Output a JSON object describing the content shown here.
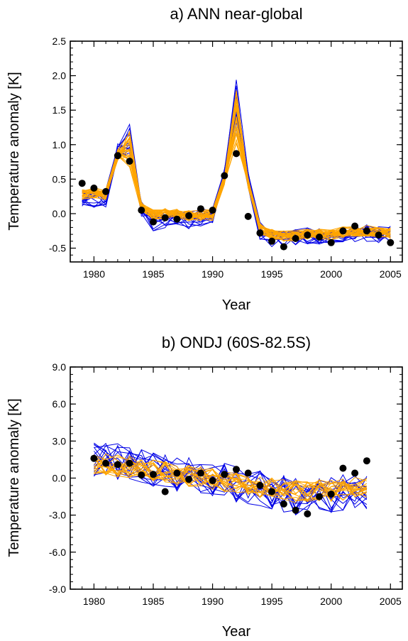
{
  "chart_data": [
    {
      "type": "line",
      "title": "a) ANN near-global",
      "xlabel": "Year",
      "ylabel": "Temperature anomaly [K]",
      "xlim": [
        1978,
        2006
      ],
      "ylim": [
        -0.7,
        2.5
      ],
      "xticks": [
        1980,
        1985,
        1990,
        1995,
        2000,
        2005
      ],
      "xtick_labels": [
        "1980",
        "1985",
        "1990",
        "1995",
        "2000",
        "2005"
      ],
      "yticks": [
        -0.5,
        0.0,
        0.5,
        1.0,
        1.5,
        2.0,
        2.5
      ],
      "ytick_labels": [
        "-0.5",
        "0.0",
        "0.5",
        "1.0",
        "1.5",
        "2.0",
        "2.5"
      ],
      "colors": {
        "ensemble_a": "#0000e6",
        "ensemble_b": "#ffa500",
        "observations": "#000000"
      },
      "ensembles": [
        {
          "color": "#0000e6",
          "count": 14,
          "amp": 0.13,
          "x": [
            1979,
            1980,
            1981,
            1982,
            1983,
            1984,
            1985,
            1986,
            1987,
            1988,
            1989,
            1990,
            1991,
            1992,
            1993,
            1994,
            1995,
            1996,
            1997,
            1998,
            1999,
            2000,
            2001,
            2002,
            2003,
            2004,
            2005
          ],
          "values": [
            0.2,
            0.22,
            0.22,
            0.92,
            1.0,
            0.05,
            -0.12,
            -0.1,
            -0.08,
            -0.1,
            -0.05,
            -0.05,
            0.55,
            1.5,
            0.5,
            -0.25,
            -0.35,
            -0.35,
            -0.35,
            -0.33,
            -0.32,
            -0.32,
            -0.3,
            -0.28,
            -0.28,
            -0.3,
            -0.3
          ]
        },
        {
          "color": "#ffa500",
          "count": 26,
          "amp": 0.08,
          "x": [
            1979,
            1980,
            1981,
            1982,
            1983,
            1984,
            1985,
            1986,
            1987,
            1988,
            1989,
            1990,
            1991,
            1992,
            1993,
            1994,
            1995,
            1996,
            1997,
            1998,
            1999,
            2000,
            2001,
            2002,
            2003,
            2004,
            2005
          ],
          "values": [
            0.28,
            0.3,
            0.28,
            0.85,
            0.9,
            0.1,
            -0.02,
            0.0,
            0.0,
            -0.03,
            -0.02,
            -0.02,
            0.5,
            1.35,
            0.45,
            -0.22,
            -0.3,
            -0.32,
            -0.32,
            -0.3,
            -0.3,
            -0.3,
            -0.27,
            -0.25,
            -0.25,
            -0.27,
            -0.28
          ]
        }
      ],
      "observations": {
        "x": [
          1979,
          1980,
          1981,
          1982,
          1983,
          1984,
          1985,
          1986,
          1987,
          1988,
          1989,
          1990,
          1991,
          1992,
          1993,
          1994,
          1995,
          1996,
          1997,
          1998,
          1999,
          2000,
          2001,
          2002,
          2003,
          2004,
          2005
        ],
        "y": [
          0.44,
          0.37,
          0.32,
          0.84,
          0.76,
          0.05,
          -0.12,
          -0.06,
          -0.08,
          -0.03,
          0.07,
          0.05,
          0.55,
          0.87,
          -0.04,
          -0.28,
          -0.4,
          -0.48,
          -0.36,
          -0.31,
          -0.34,
          -0.42,
          -0.25,
          -0.18,
          -0.25,
          -0.31,
          -0.42
        ]
      }
    },
    {
      "type": "line",
      "title": "b) ONDJ (60S-82.5S)",
      "xlabel": "Year",
      "ylabel": "Temperature anomaly [K]",
      "xlim": [
        1978,
        2006
      ],
      "ylim": [
        -9.0,
        9.0
      ],
      "xticks": [
        1980,
        1985,
        1990,
        1995,
        2000,
        2005
      ],
      "xtick_labels": [
        "1980",
        "1985",
        "1990",
        "1995",
        "2000",
        "2005"
      ],
      "yticks": [
        -9.0,
        -6.0,
        -3.0,
        0.0,
        3.0,
        6.0,
        9.0
      ],
      "ytick_labels": [
        "-9.0",
        "-6.0",
        "-3.0",
        "0.0",
        "3.0",
        "6.0",
        "9.0"
      ],
      "colors": {
        "ensemble_a": "#0000e6",
        "ensemble_b": "#ffa500",
        "observations": "#000000"
      },
      "ensembles": [
        {
          "color": "#0000e6",
          "count": 14,
          "amp": 1.5,
          "x": [
            1980,
            1981,
            1982,
            1983,
            1984,
            1985,
            1986,
            1987,
            1988,
            1989,
            1990,
            1991,
            1992,
            1993,
            1994,
            1995,
            1996,
            1997,
            1998,
            1999,
            2000,
            2001,
            2002,
            2003
          ],
          "values": [
            1.5,
            1.4,
            1.3,
            1.2,
            1.0,
            0.8,
            0.6,
            0.4,
            0.2,
            0.1,
            -0.1,
            -0.3,
            -0.5,
            -0.7,
            -0.9,
            -1.1,
            -1.3,
            -1.5,
            -1.5,
            -1.4,
            -1.3,
            -1.2,
            -1.1,
            -1.0
          ]
        },
        {
          "color": "#ffa500",
          "count": 18,
          "amp": 0.9,
          "x": [
            1980,
            1981,
            1982,
            1983,
            1984,
            1985,
            1986,
            1987,
            1988,
            1989,
            1990,
            1991,
            1992,
            1993,
            1994,
            1995,
            1996,
            1997,
            1998,
            1999,
            2000,
            2001,
            2002,
            2003
          ],
          "values": [
            1.2,
            1.1,
            1.0,
            0.9,
            0.8,
            0.6,
            0.5,
            0.3,
            0.2,
            0.1,
            -0.1,
            -0.2,
            -0.4,
            -0.5,
            -0.7,
            -0.8,
            -1.0,
            -1.1,
            -1.1,
            -1.0,
            -1.0,
            -0.9,
            -0.8,
            -0.7
          ]
        }
      ],
      "observations": {
        "x": [
          1980,
          1981,
          1982,
          1983,
          1984,
          1985,
          1986,
          1987,
          1988,
          1989,
          1990,
          1991,
          1992,
          1993,
          1994,
          1995,
          1996,
          1997,
          1998,
          1999,
          2000,
          2001,
          2002,
          2003
        ],
        "y": [
          1.6,
          1.2,
          1.1,
          1.2,
          0.25,
          0.3,
          -1.1,
          0.4,
          -0.1,
          0.4,
          -0.2,
          0.3,
          0.7,
          0.4,
          -0.6,
          -1.1,
          -2.1,
          -2.6,
          -2.9,
          -1.5,
          -1.3,
          0.8,
          0.4,
          1.4
        ]
      }
    }
  ]
}
